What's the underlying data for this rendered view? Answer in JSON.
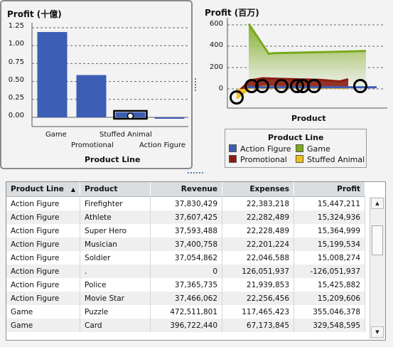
{
  "bar_chart": {
    "title": "Profit (十億)",
    "xlabel": "Product Line",
    "y_ticks": [
      "1.25",
      "1.00",
      "0.75",
      "0.50",
      "0.25",
      "0.00"
    ],
    "colors": {
      "bar": "#3c5eb4",
      "highlight": "#000000"
    },
    "chart_data": {
      "type": "bar",
      "categories": [
        "Game",
        "Promotional",
        "Stuffed Animal",
        "Action Figure"
      ],
      "values": [
        1.19,
        0.59,
        0.07,
        -0.01
      ],
      "ylim": [
        0,
        1.25
      ],
      "ylabel": "",
      "grid": true
    }
  },
  "area_chart": {
    "title": "Profit (百万)",
    "xlabel": "Product",
    "y_ticks": [
      "600",
      "400",
      "200",
      "0"
    ],
    "colors": {
      "Action Figure": "#3c5eb4",
      "Game": "#7aa91c",
      "Promotional": "#8b1c10",
      "Stuffed Animal": "#f2c01e"
    },
    "chart_data": {
      "type": "area",
      "ylim": [
        -120,
        640
      ],
      "grid": true,
      "series": [
        {
          "name": "Game",
          "values": [
            610,
            330,
            335,
            340,
            345,
            350,
            355
          ]
        },
        {
          "name": "Promotional",
          "values": [
            -40,
            80,
            100,
            95,
            90,
            85,
            70,
            90
          ]
        },
        {
          "name": "Stuffed Animal",
          "values": [
            -90,
            10,
            20,
            15,
            12,
            10,
            8
          ]
        },
        {
          "name": "Action Figure",
          "values": [
            15,
            15,
            15,
            15,
            15,
            15,
            15,
            15,
            15,
            -126
          ]
        }
      ]
    }
  },
  "legend": {
    "title": "Product Line",
    "items": [
      "Action Figure",
      "Game",
      "Promotional",
      "Stuffed Animal"
    ]
  },
  "table": {
    "columns": [
      "Product Line",
      "Product",
      "Revenue",
      "Expenses",
      "Profit"
    ],
    "rows": [
      [
        "Action Figure",
        "Firefighter",
        "37,830,429",
        "22,383,218",
        "15,447,211"
      ],
      [
        "Action Figure",
        "Athlete",
        "37,607,425",
        "22,282,489",
        "15,324,936"
      ],
      [
        "Action Figure",
        "Super Hero",
        "37,593,488",
        "22,228,489",
        "15,364,999"
      ],
      [
        "Action Figure",
        "Musician",
        "37,400,758",
        "22,201,224",
        "15,199,534"
      ],
      [
        "Action Figure",
        "Soldier",
        "37,054,862",
        "22,046,588",
        "15,008,274"
      ],
      [
        "Action Figure",
        ".",
        "0",
        "126,051,937",
        "-126,051,937"
      ],
      [
        "Action Figure",
        "Police",
        "37,365,735",
        "21,939,853",
        "15,425,882"
      ],
      [
        "Action Figure",
        "Movie Star",
        "37,466,062",
        "22,256,456",
        "15,209,606"
      ],
      [
        "Game",
        "Puzzle",
        "472,511,801",
        "117,465,423",
        "355,046,378"
      ],
      [
        "Game",
        "Card",
        "396,722,440",
        "67,173,845",
        "329,548,595"
      ]
    ]
  }
}
